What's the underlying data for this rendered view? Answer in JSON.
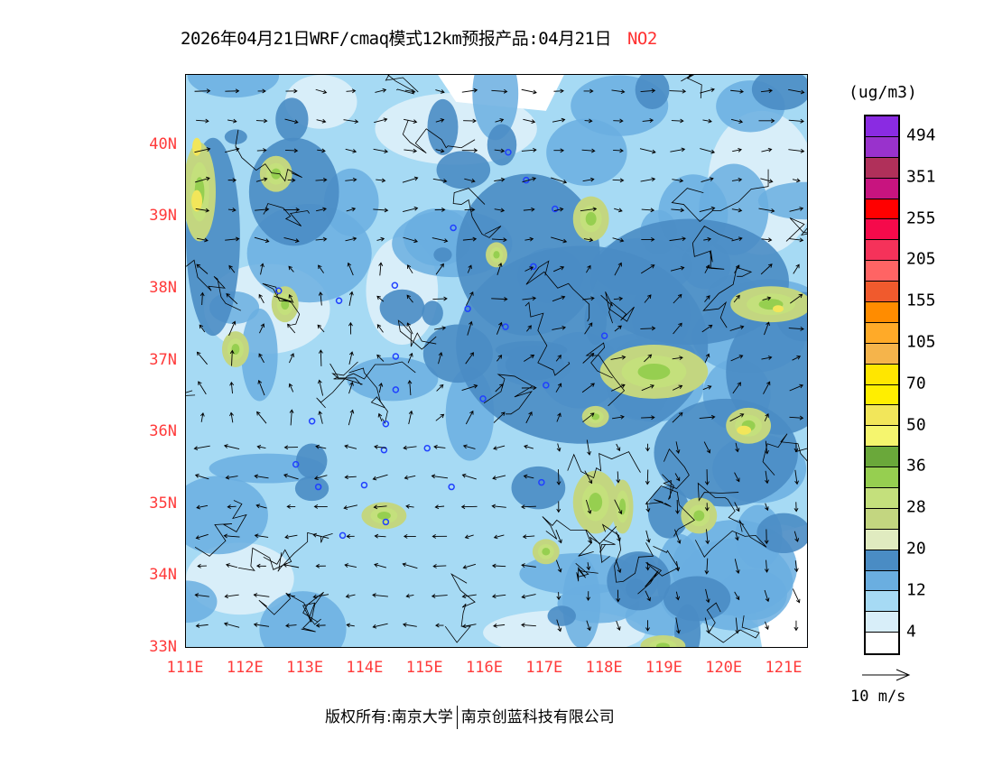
{
  "title": {
    "main": "2026年04月21日WRF/cmaq模式12km预报产品:04月21日",
    "species": "NO2"
  },
  "axes": {
    "lat_ticks": [
      "33N",
      "34N",
      "35N",
      "36N",
      "37N",
      "38N",
      "39N",
      "40N"
    ],
    "lon_ticks": [
      "111E",
      "112E",
      "113E",
      "114E",
      "115E",
      "116E",
      "117E",
      "118E",
      "119E",
      "120E",
      "121E"
    ]
  },
  "legend": {
    "units": "(ug/m3)",
    "colors": [
      "#8a2be2",
      "#9932cc",
      "#b0305a",
      "#c8147f",
      "#ff0000",
      "#f50a4b",
      "#f5325a",
      "#ff6464",
      "#f05a2d",
      "#ff8c00",
      "#ffaa28",
      "#f5b44b",
      "#ffe600",
      "#ffee00",
      "#f2e65a",
      "#f5f56e",
      "#6aa83a",
      "#96cf50",
      "#c4e07c",
      "#c3d680",
      "#e0ebc0",
      "#4a8cc4",
      "#6aaee0",
      "#a6daf4",
      "#d8eef9",
      "#ffffff"
    ],
    "labels": [
      "494",
      "351",
      "255",
      "205",
      "155",
      "105",
      "70",
      "50",
      "36",
      "28",
      "20",
      "12",
      "4"
    ]
  },
  "wind_reference": {
    "label": "10 m/s"
  },
  "footer": {
    "left": "版权所有:南京大学",
    "right": "南京创蓝科技有限公司"
  },
  "colors": {
    "axis_label": "#ff3a3a",
    "species": "#ff3030",
    "city_marker": "#2040ff"
  }
}
